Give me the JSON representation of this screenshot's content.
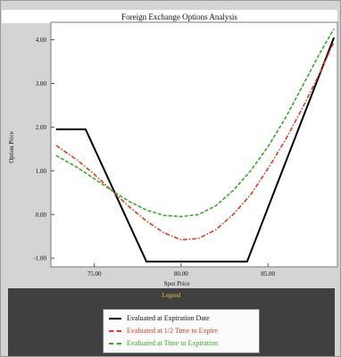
{
  "chart_data": {
    "type": "line",
    "title": "Foreign Exchange Options Analysis",
    "xlabel": "Spot Price",
    "ylabel": "Option Price",
    "xlim": [
      72.5,
      89
    ],
    "ylim": [
      -1.2,
      4.4
    ],
    "xticks": [
      75,
      80,
      85
    ],
    "xtick_labels": [
      "75.00",
      "80.00",
      "85.00"
    ],
    "yticks": [
      -1,
      0,
      1,
      2,
      3,
      4
    ],
    "ytick_labels": [
      "-1.00",
      "0.00",
      "1.00",
      "2.00",
      "3.00",
      "4.00"
    ],
    "grid": false,
    "legend_position": "bottom",
    "series": [
      {
        "name": "Evaluated at Expiration Date",
        "color": "#000000",
        "dash": "solid",
        "x": [
          72.8,
          74.5,
          78,
          83.8,
          88.8
        ],
        "y": [
          1.95,
          1.95,
          -1.08,
          -1.08,
          4.05
        ]
      },
      {
        "name": "Evaluated at 1/2 Time to Expire",
        "color": "#e23a1e",
        "dash": "dashdot",
        "x": [
          72.8,
          74,
          75,
          76,
          77,
          78,
          79,
          80,
          81,
          82,
          83,
          84,
          85,
          86,
          87,
          88,
          88.8
        ],
        "y": [
          1.58,
          1.25,
          0.92,
          0.55,
          0.18,
          -0.15,
          -0.42,
          -0.58,
          -0.55,
          -0.35,
          0.0,
          0.45,
          1.05,
          1.7,
          2.45,
          3.25,
          3.95
        ]
      },
      {
        "name": "Evaluated at Time to Expiration",
        "color": "#3aa82a",
        "dash": "dashed",
        "x": [
          72.8,
          74,
          75,
          76,
          77,
          78,
          79,
          80,
          81,
          82,
          83,
          84,
          85,
          86,
          87,
          88,
          88.8
        ],
        "y": [
          1.35,
          1.08,
          0.82,
          0.55,
          0.3,
          0.1,
          -0.02,
          -0.05,
          0.0,
          0.2,
          0.55,
          1.0,
          1.55,
          2.2,
          2.95,
          3.7,
          4.25
        ]
      }
    ]
  },
  "legend": {
    "title": "Legend"
  }
}
